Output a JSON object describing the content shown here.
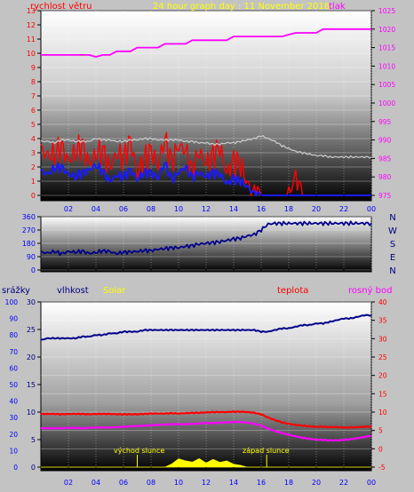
{
  "header": {
    "title": "24 hour graph day : 11 November 2018",
    "left_label": "rychlost větru",
    "right_label": "tlak"
  },
  "colors": {
    "background": "#c3c3c3",
    "wind_avg": "#1a1aff",
    "wind_gust": "#ff0000",
    "wind_gray": "#c8c8c8",
    "pressure": "#ff00ff",
    "wind_dir": "#00008b",
    "humidity": "#00008b",
    "temperature": "#ff0000",
    "dewpoint": "#ff00ff",
    "solar": "#ffff00",
    "title": "#ffff00",
    "axis_blue": "#0000ff"
  },
  "time_ticks": [
    "02",
    "04",
    "06",
    "08",
    "10",
    "12",
    "14",
    "16",
    "18",
    "20",
    "22",
    "00"
  ],
  "chart_data": [
    {
      "type": "line",
      "x": [
        0,
        0.5,
        1,
        1.5,
        2,
        2.5,
        3,
        3.5,
        4,
        4.5,
        5,
        5.5,
        6,
        6.5,
        7,
        7.5,
        8,
        8.5,
        9,
        9.5,
        10,
        10.5,
        11,
        11.5,
        12,
        12.5,
        13,
        13.5,
        14,
        14.5,
        15,
        15.5,
        16,
        16.5,
        17,
        17.5,
        18,
        18.5,
        19,
        19.5,
        20,
        20.5,
        21,
        21.5,
        22,
        22.5,
        23,
        23.5,
        24
      ],
      "left_axis": {
        "ticks": [
          "0",
          "1",
          "2",
          "3",
          "4",
          "5",
          "6",
          "7",
          "8",
          "9",
          "10",
          "11",
          "12",
          "13"
        ],
        "ylim": [
          0,
          13
        ]
      },
      "right_axis": {
        "ticks": [
          "975",
          "980",
          "985",
          "990",
          "995",
          "1000",
          "1005",
          "1010",
          "1015",
          "1020",
          "1025"
        ],
        "ylim": [
          975,
          1025
        ]
      },
      "series": [
        {
          "axis": "right",
          "values": [
            1013,
            1013,
            1013,
            1013,
            1013,
            1013,
            1013,
            1013,
            1012.5,
            1013,
            1013,
            1014,
            1014,
            1014,
            1015,
            1015,
            1015,
            1015,
            1016,
            1016,
            1016,
            1016,
            1017,
            1017,
            1017,
            1017,
            1017,
            1017,
            1018,
            1018,
            1018,
            1018,
            1018,
            1018,
            1018,
            1018,
            1018.5,
            1019,
            1019,
            1019,
            1019,
            1020,
            1020,
            1020,
            1020,
            1020,
            1020,
            1020,
            1020
          ]
        },
        {
          "axis": "left",
          "values": [
            3.8,
            3.8,
            3.7,
            3.9,
            3.9,
            3.8,
            3.8,
            3.8,
            4.0,
            3.9,
            3.9,
            3.8,
            3.8,
            3.9,
            3.9,
            4.0,
            4.0,
            3.9,
            3.9,
            3.9,
            3.9,
            3.8,
            3.8,
            3.7,
            3.7,
            3.6,
            3.6,
            3.7,
            3.7,
            3.8,
            3.9,
            4.0,
            4.2,
            4.0,
            3.8,
            3.5,
            3.3,
            3.1,
            3.0,
            2.9,
            2.8,
            2.8,
            2.7,
            2.7,
            2.7,
            2.7,
            2.7,
            2.7,
            2.7
          ]
        },
        {
          "axis": "left",
          "values": [
            3.2,
            2.8,
            2.9,
            3.5,
            2.4,
            3.0,
            3.6,
            2.2,
            2.9,
            3.2,
            2.0,
            2.9,
            2.6,
            3.9,
            1.5,
            2.6,
            3.2,
            2.1,
            4.0,
            2.4,
            3.5,
            3.2,
            1.7,
            3.1,
            2.2,
            2.9,
            3.4,
            1.5,
            2.5,
            2.2,
            0.8,
            0.1,
            0,
            0,
            0,
            0,
            0,
            1.4,
            0,
            0,
            0,
            0,
            0,
            0,
            0,
            0,
            0,
            0,
            0
          ]
        },
        {
          "axis": "left",
          "values": [
            1.7,
            1.5,
            1.9,
            2.0,
            1.5,
            1.3,
            1.6,
            1.8,
            2.1,
            1.7,
            1.0,
            1.4,
            1.3,
            1.8,
            1.1,
            1.6,
            1.6,
            1.2,
            2.3,
            1.1,
            1.6,
            2.0,
            1.3,
            1.6,
            1.3,
            1.6,
            1.5,
            0.8,
            1.2,
            1.0,
            0.6,
            0.1,
            0,
            0,
            0,
            0,
            0,
            0,
            0,
            0,
            0,
            0,
            0,
            0,
            0,
            0,
            0,
            0,
            0
          ]
        }
      ]
    },
    {
      "type": "line",
      "x": [
        0,
        0.5,
        1,
        1.5,
        2,
        2.5,
        3,
        3.5,
        4,
        4.5,
        5,
        5.5,
        6,
        6.5,
        7,
        7.5,
        8,
        8.5,
        9,
        9.5,
        10,
        10.5,
        11,
        11.5,
        12,
        12.5,
        13,
        13.5,
        14,
        14.5,
        15,
        15.5,
        16,
        16.5,
        17,
        17.5,
        18,
        18.5,
        19,
        19.5,
        20,
        20.5,
        21,
        21.5,
        22,
        22.5,
        23,
        23.5,
        24
      ],
      "y_axis": {
        "ticks": [
          "0",
          "90",
          "180",
          "270",
          "360"
        ],
        "ylim": [
          0,
          360
        ]
      },
      "compass": [
        "N",
        "W",
        "S",
        "E",
        "N"
      ],
      "series": [
        {
          "values": [
            120,
            115,
            125,
            110,
            125,
            120,
            128,
            112,
            118,
            130,
            125,
            110,
            120,
            122,
            125,
            132,
            130,
            140,
            145,
            150,
            150,
            160,
            165,
            175,
            180,
            185,
            190,
            200,
            210,
            215,
            230,
            240,
            270,
            310,
            315,
            315,
            315,
            315,
            315,
            315,
            315,
            315,
            315,
            315,
            315,
            315,
            315,
            315,
            315
          ]
        }
      ]
    },
    {
      "type": "line",
      "x": [
        0,
        0.5,
        1,
        1.5,
        2,
        2.5,
        3,
        3.5,
        4,
        4.5,
        5,
        5.5,
        6,
        6.5,
        7,
        7.5,
        8,
        8.5,
        9,
        9.5,
        10,
        10.5,
        11,
        11.5,
        12,
        12.5,
        13,
        13.5,
        14,
        14.5,
        15,
        15.5,
        16,
        16.5,
        17,
        17.5,
        18,
        18.5,
        19,
        19.5,
        20,
        20.5,
        21,
        21.5,
        22,
        22.5,
        23,
        23.5,
        24
      ],
      "labels": {
        "rain": "srážky",
        "humidity": "vlhkost",
        "solar": "Solar",
        "temperature": "teplota",
        "dewpoint": "rosný bod"
      },
      "annotations": {
        "sunrise": "východ slunce",
        "sunset": "západ slunce"
      },
      "axis_rain": {
        "ticks": [
          "0",
          "10",
          "20",
          "30",
          "40",
          "50",
          "60",
          "70",
          "80",
          "90",
          "100"
        ],
        "ylim": [
          0,
          100
        ]
      },
      "axis_humidity": {
        "ticks": [
          "0",
          "5",
          "10",
          "15",
          "20",
          "25",
          "30"
        ],
        "ylim": [
          0,
          30
        ]
      },
      "axis_temp": {
        "ticks": [
          "-5",
          "0",
          "5",
          "10",
          "15",
          "20",
          "25",
          "30",
          "35",
          "40"
        ],
        "ylim": [
          -5,
          40
        ]
      },
      "series": [
        {
          "axis": "rain",
          "values": [
            77,
            78,
            78,
            78,
            78,
            78,
            79,
            79,
            80,
            80,
            81,
            81,
            82,
            82,
            82,
            83,
            83,
            83,
            83,
            83,
            83,
            83,
            83,
            83,
            83,
            83,
            83,
            83,
            83,
            83,
            83,
            83,
            82,
            82,
            83,
            84,
            84,
            85,
            86,
            86,
            87,
            87,
            88,
            89,
            90,
            90,
            91,
            92,
            92
          ]
        },
        {
          "axis": "temp",
          "values": [
            9.5,
            9.5,
            9.5,
            9.4,
            9.5,
            9.5,
            9.5,
            9.4,
            9.5,
            9.5,
            9.5,
            9.4,
            9.4,
            9.4,
            9.4,
            9.5,
            9.6,
            9.6,
            9.6,
            9.7,
            9.6,
            9.7,
            9.8,
            9.8,
            9.9,
            10,
            10,
            10,
            10.1,
            10.1,
            10,
            9.8,
            9.4,
            8.5,
            7.8,
            7.2,
            6.8,
            6.5,
            6.3,
            6.1,
            6.0,
            6.0,
            5.9,
            5.9,
            5.8,
            5.8,
            5.9,
            6.0,
            6.1
          ]
        },
        {
          "axis": "temp",
          "values": [
            5.6,
            5.6,
            5.6,
            5.6,
            5.7,
            5.7,
            5.6,
            5.7,
            5.8,
            5.8,
            5.8,
            5.9,
            6.0,
            6.1,
            6.2,
            6.3,
            6.4,
            6.5,
            6.6,
            6.7,
            6.7,
            6.7,
            6.8,
            6.9,
            7.0,
            7.0,
            7.1,
            7.2,
            7.3,
            7.3,
            7.1,
            6.8,
            6.3,
            5.5,
            4.8,
            4.3,
            3.8,
            3.4,
            3.0,
            2.7,
            2.5,
            2.4,
            2.3,
            2.3,
            2.4,
            2.6,
            2.9,
            3.2,
            3.6
          ]
        },
        {
          "axis": "humidity",
          "values": [
            0,
            0,
            0,
            0,
            0,
            0,
            0,
            0,
            0,
            0,
            0,
            0,
            0,
            0,
            0,
            0,
            0,
            0,
            0,
            0.8,
            1.4,
            1.2,
            1.0,
            1.4,
            1.0,
            1.2,
            1.1,
            1.0,
            0.6,
            0.4,
            0,
            0,
            0,
            0,
            0,
            0,
            0,
            0,
            0,
            0,
            0,
            0,
            0,
            0,
            0,
            0,
            0,
            0,
            0
          ]
        }
      ]
    }
  ]
}
